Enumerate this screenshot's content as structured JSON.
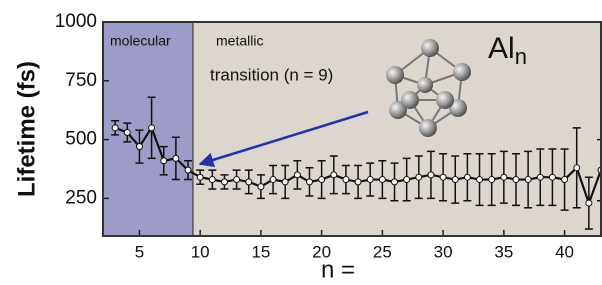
{
  "chart_data": {
    "type": "errorbar",
    "y_label": "Lifetime (fs)",
    "x_label": "n =",
    "title": "Al",
    "title_subscript": "n",
    "region_labels": [
      "molecular",
      "metallic"
    ],
    "annotation": "transition (n = 9)",
    "molecular_region": [
      2,
      9.4
    ],
    "x": [
      3,
      4,
      5,
      6,
      7,
      8,
      9,
      10,
      11,
      12,
      13,
      14,
      15,
      16,
      17,
      18,
      19,
      20,
      21,
      22,
      23,
      24,
      25,
      26,
      27,
      28,
      29,
      30,
      31,
      32,
      33,
      34,
      35,
      36,
      37,
      38,
      39,
      40,
      41,
      42,
      43
    ],
    "values": [
      550,
      530,
      470,
      550,
      410,
      420,
      370,
      340,
      330,
      320,
      330,
      320,
      300,
      330,
      320,
      350,
      320,
      330,
      350,
      330,
      320,
      330,
      330,
      320,
      330,
      340,
      350,
      340,
      330,
      340,
      330,
      330,
      340,
      330,
      330,
      340,
      340,
      330,
      380,
      230,
      370
    ],
    "errors": [
      30,
      40,
      70,
      130,
      60,
      90,
      40,
      30,
      40,
      30,
      40,
      50,
      50,
      60,
      70,
      60,
      60,
      80,
      80,
      60,
      70,
      70,
      80,
      80,
      90,
      90,
      100,
      100,
      100,
      100,
      110,
      110,
      110,
      110,
      120,
      120,
      120,
      130,
      170,
      110,
      130
    ],
    "color": "#111111",
    "plot_background": "#dcd6cf",
    "region_color": "#9d9cc9",
    "xlim": [
      2,
      43
    ],
    "ylim": [
      90,
      1000
    ],
    "xticks": [
      5,
      10,
      15,
      20,
      25,
      30,
      35,
      40
    ],
    "yticks": [
      250,
      500,
      750,
      1000
    ]
  }
}
